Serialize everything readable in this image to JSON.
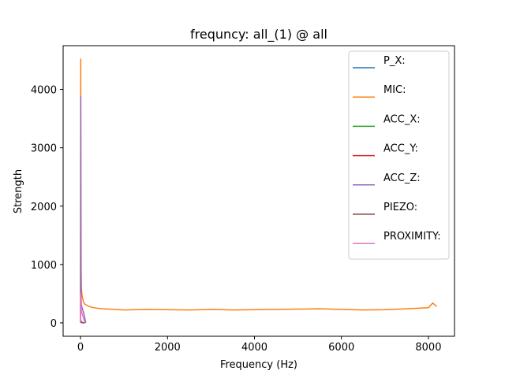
{
  "chart_data": {
    "type": "line",
    "title": "frequncy: all_(1) @ all",
    "xlabel": "Frequency (Hz)",
    "ylabel": "Strength",
    "xlim": [
      -400,
      8600
    ],
    "ylim": [
      -230,
      4750
    ],
    "xticks": [
      0,
      2000,
      4000,
      6000,
      8000
    ],
    "yticks": [
      0,
      1000,
      2000,
      3000,
      4000
    ],
    "grid": false,
    "legend_position": "top-right",
    "series": [
      {
        "name": "P_X:",
        "color": "#1f77b4",
        "x": [
          0,
          5,
          10,
          15,
          20,
          40,
          60,
          80,
          100
        ],
        "y": [
          0,
          15,
          8,
          5,
          3,
          2,
          1,
          1,
          0
        ]
      },
      {
        "name": "MIC:",
        "color": "#ff7f0e",
        "x": [
          0,
          5,
          10,
          15,
          20,
          30,
          40,
          50,
          60,
          80,
          100,
          150,
          200,
          300,
          500,
          800,
          1000,
          1500,
          2000,
          2500,
          3000,
          3500,
          4000,
          4500,
          5000,
          5500,
          6000,
          6500,
          7000,
          7500,
          8000,
          8100,
          8192
        ],
        "y": [
          100,
          4520,
          1800,
          900,
          600,
          500,
          450,
          420,
          380,
          340,
          320,
          300,
          280,
          260,
          240,
          230,
          220,
          230,
          225,
          220,
          230,
          220,
          225,
          230,
          235,
          240,
          230,
          220,
          225,
          240,
          260,
          340,
          280
        ]
      },
      {
        "name": "ACC_X:",
        "color": "#2ca02c",
        "x": [
          0,
          5,
          10,
          20,
          50,
          100
        ],
        "y": [
          0,
          40,
          20,
          10,
          5,
          0
        ]
      },
      {
        "name": "ACC_Y:",
        "color": "#d62728",
        "x": [
          0,
          5,
          10,
          20,
          50,
          100
        ],
        "y": [
          0,
          35,
          18,
          10,
          5,
          0
        ]
      },
      {
        "name": "ACC_Z:",
        "color": "#9467bd",
        "x": [
          0,
          5,
          10,
          15,
          20,
          40,
          60,
          80,
          100,
          120
        ],
        "y": [
          0,
          3880,
          900,
          400,
          300,
          250,
          200,
          150,
          80,
          0
        ]
      },
      {
        "name": "PIEZO:",
        "color": "#8c564b",
        "x": [
          0,
          5,
          10,
          20,
          50,
          100
        ],
        "y": [
          0,
          60,
          30,
          15,
          5,
          0
        ]
      },
      {
        "name": "PROXIMITY:",
        "color": "#e377c2",
        "x": [
          0,
          5,
          10,
          20,
          40,
          60,
          80,
          100
        ],
        "y": [
          0,
          500,
          300,
          200,
          150,
          100,
          50,
          0
        ]
      }
    ]
  }
}
